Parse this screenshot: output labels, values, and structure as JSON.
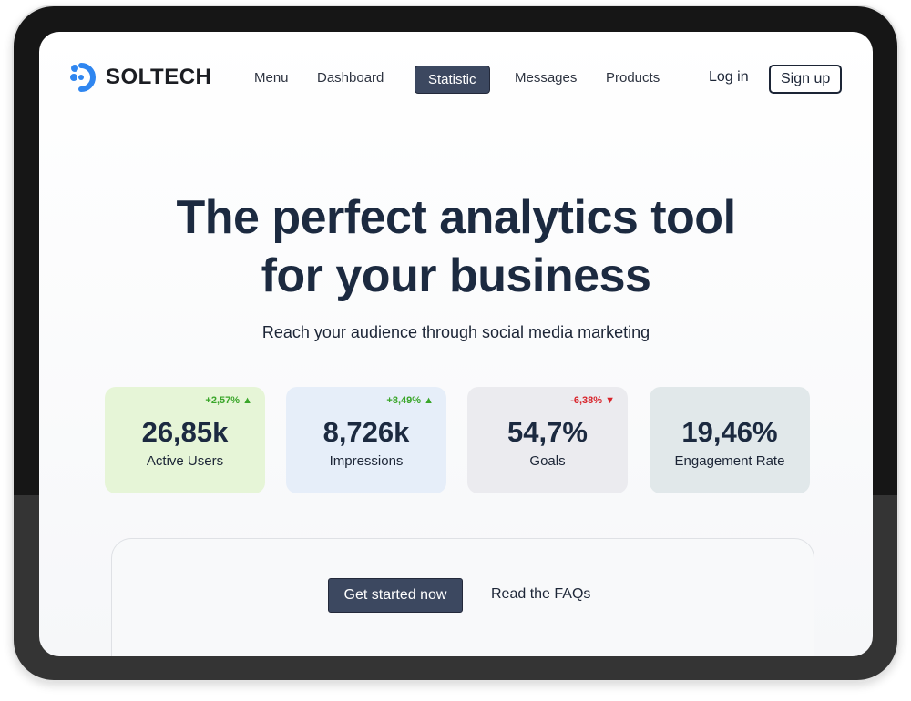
{
  "brand": {
    "name": "SOLTECH",
    "accent": "#2f86f0"
  },
  "nav": {
    "items": [
      {
        "label": "Menu"
      },
      {
        "label": "Dashboard"
      },
      {
        "label": "Statistic",
        "active": true
      },
      {
        "label": "Messages"
      },
      {
        "label": "Products"
      }
    ],
    "login": "Log in",
    "signup": "Sign up"
  },
  "hero": {
    "line1": "The perfect analytics tool",
    "line2": "for your business",
    "subtitle": "Reach your audience through social media marketing"
  },
  "stats": [
    {
      "value": "26,85k",
      "label": "Active Users",
      "change": "+2,57%",
      "trend": "up",
      "bg": "#e6f5d7"
    },
    {
      "value": "8,726k",
      "label": "Impressions",
      "change": "+8,49%",
      "trend": "up",
      "bg": "#e6eef9"
    },
    {
      "value": "54,7%",
      "label": "Goals",
      "change": "-6,38%",
      "trend": "down",
      "bg": "#ebebef"
    },
    {
      "value": "19,46%",
      "label": "Engagement Rate",
      "bg": "#e1e8ea"
    }
  ],
  "colors": {
    "up": "#3aa62a",
    "down": "#d8232a"
  },
  "cta": {
    "primary": "Get started now",
    "secondary": "Read the FAQs"
  }
}
